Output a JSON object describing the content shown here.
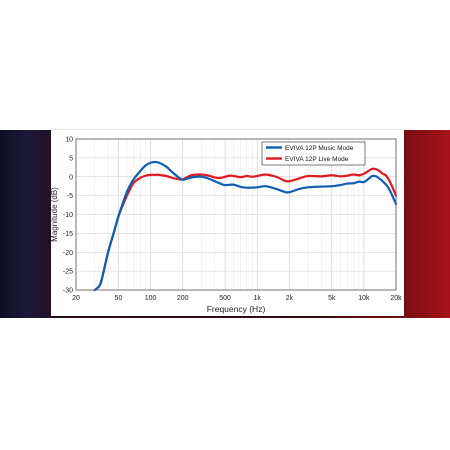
{
  "chart_data": {
    "type": "line",
    "xlabel": "Frequency (Hz)",
    "ylabel": "Magnitude (dB)",
    "xscale": "log",
    "xlim": [
      20,
      20000
    ],
    "ylim": [
      -30,
      10
    ],
    "grid": true,
    "legend_position": "top-right",
    "x_ticks": [
      20,
      50,
      100,
      200,
      500,
      1000,
      2000,
      5000,
      10000,
      20000
    ],
    "x_tick_labels": [
      "20",
      "50",
      "100",
      "200",
      "500",
      "1k",
      "2k",
      "5k",
      "10k",
      "20k"
    ],
    "y_ticks": [
      -30,
      -25,
      -20,
      -15,
      -10,
      -5,
      0,
      5,
      10
    ],
    "y_tick_labels": [
      "-30",
      "-25",
      "-20",
      "-15",
      "-10",
      "-5",
      "0",
      "5",
      "10"
    ],
    "series": [
      {
        "name": "EVIVA 12P Music Mode",
        "color": "#0a5fb4",
        "x": [
          30,
          33,
          35,
          40,
          45,
          50,
          55,
          60,
          65,
          70,
          80,
          90,
          100,
          110,
          120,
          140,
          160,
          180,
          200,
          220,
          250,
          300,
          350,
          400,
          450,
          500,
          600,
          700,
          800,
          1000,
          1200,
          1500,
          1800,
          2000,
          2500,
          3000,
          4000,
          5000,
          6000,
          7000,
          8000,
          9000,
          10000,
          11000,
          12000,
          13000,
          14000,
          15000,
          16000,
          17000,
          18000,
          19000,
          20000
        ],
        "y": [
          -30,
          -29,
          -27,
          -20,
          -15,
          -10.5,
          -7,
          -4,
          -2,
          -0.5,
          1.5,
          3,
          3.7,
          3.9,
          3.7,
          2.7,
          1.2,
          0,
          -0.8,
          -0.5,
          -0.1,
          0,
          -0.5,
          -1.2,
          -1.8,
          -2.2,
          -2.1,
          -2.7,
          -2.9,
          -2.8,
          -2.5,
          -3.2,
          -4,
          -4.1,
          -3.2,
          -2.8,
          -2.6,
          -2.5,
          -2.2,
          -1.8,
          -1.7,
          -1.3,
          -1.4,
          -0.6,
          0.2,
          0.1,
          -0.5,
          -1.2,
          -2,
          -3,
          -4.3,
          -5.8,
          -7.2
        ]
      },
      {
        "name": "EVIVA 12P Live Mode",
        "color": "#e01a22",
        "x": [
          30,
          33,
          35,
          40,
          45,
          50,
          55,
          60,
          65,
          70,
          80,
          90,
          100,
          110,
          120,
          140,
          160,
          180,
          200,
          220,
          250,
          300,
          350,
          400,
          450,
          500,
          550,
          600,
          700,
          800,
          900,
          1000,
          1200,
          1500,
          1800,
          2000,
          2500,
          3000,
          4000,
          5000,
          6000,
          7000,
          8000,
          9000,
          10000,
          11000,
          12000,
          13000,
          14000,
          15000,
          16000,
          17000,
          18000,
          19000,
          20000
        ],
        "y": [
          -30,
          -29,
          -27,
          -20,
          -15,
          -10.5,
          -7.5,
          -5,
          -3,
          -1.5,
          -0.3,
          0.3,
          0.5,
          0.5,
          0.5,
          0.2,
          -0.3,
          -0.6,
          -0.7,
          -0.1,
          0.5,
          0.6,
          0.3,
          -0.2,
          -0.3,
          0,
          0.3,
          0.2,
          -0.1,
          0.2,
          0,
          0.2,
          0.6,
          0,
          -1,
          -1.2,
          -0.4,
          0.2,
          0.1,
          0.4,
          0.1,
          0.3,
          0.6,
          0.4,
          0.8,
          1.5,
          2.1,
          2,
          1.5,
          0.8,
          0.4,
          -0.6,
          -2,
          -3.5,
          -5
        ]
      }
    ]
  }
}
